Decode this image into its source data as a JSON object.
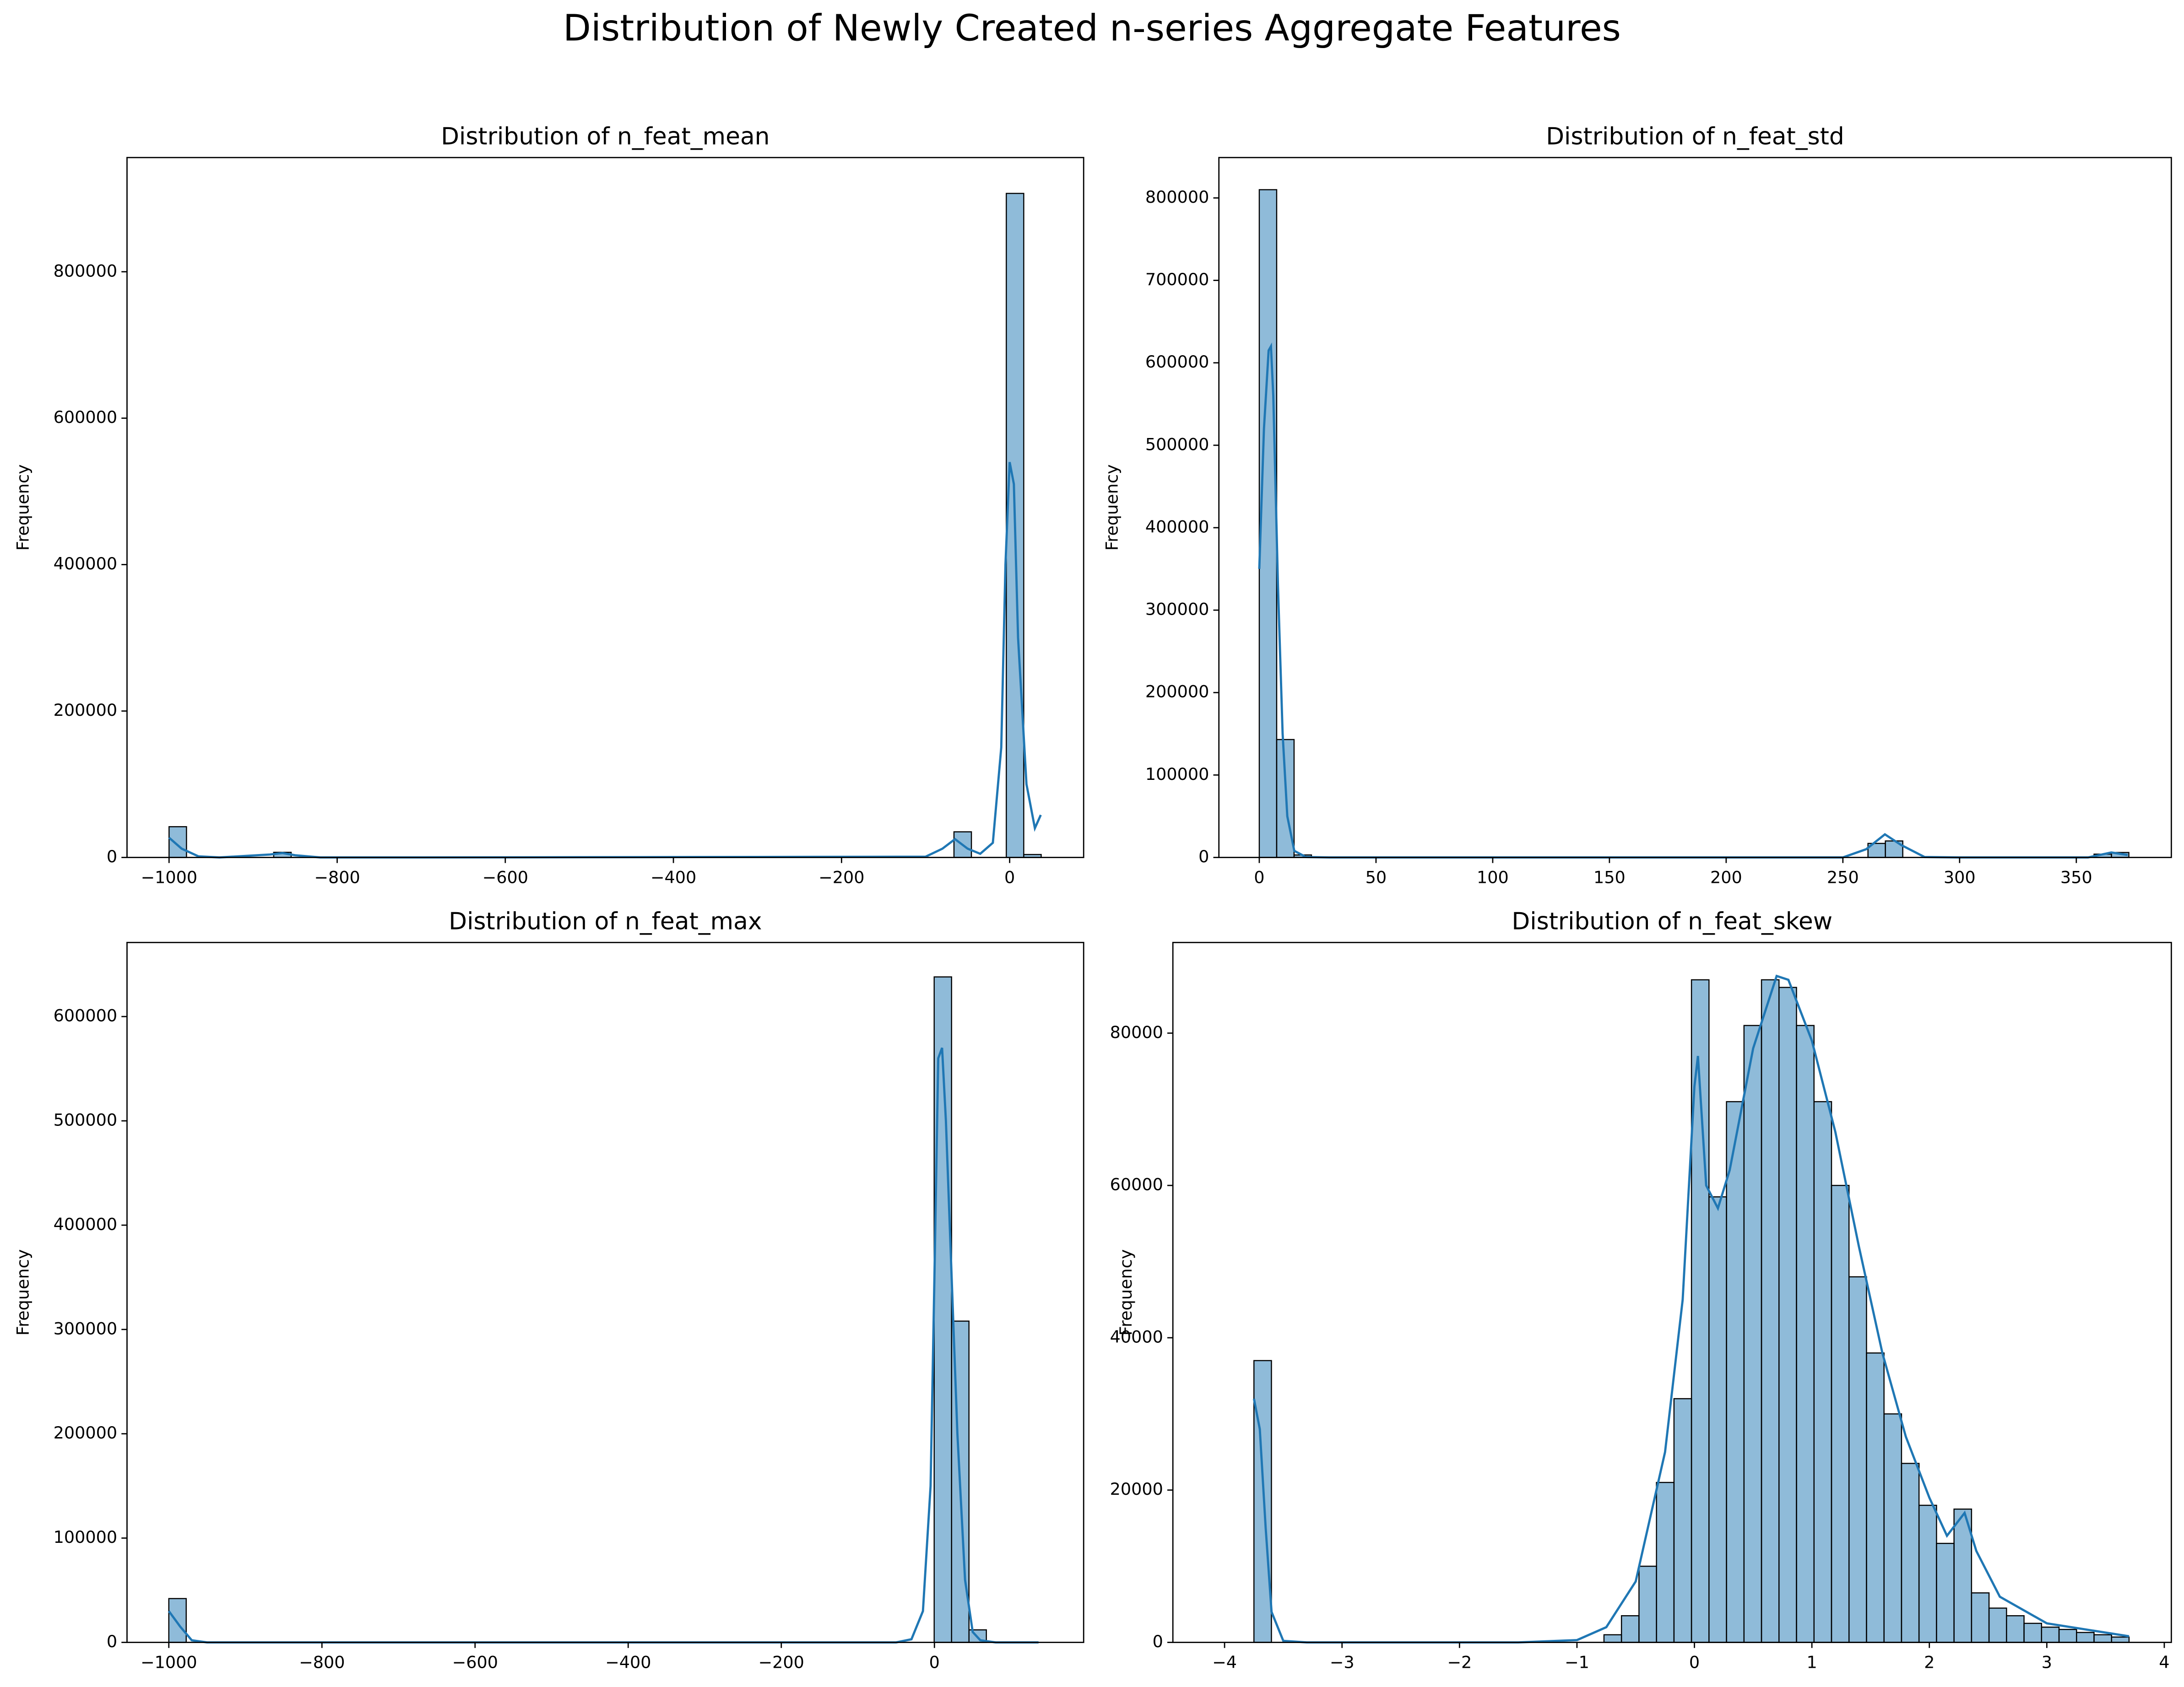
{
  "title": "Distribution of Newly Created n-series Aggregate Features",
  "chart_data": [
    {
      "type": "histogram",
      "title": "Distribution of n_feat_mean",
      "y_label": "Frequency",
      "color": "#1f77b4",
      "bins": [
        -1000,
        -979.25,
        -958.5,
        -937.75,
        -917,
        -896.25,
        -875.5,
        -854.75,
        -834,
        -813.25,
        -792.5,
        -771.75,
        -751,
        -730.25,
        -709.5,
        -688.75,
        -668,
        -647.25,
        -626.5,
        -605.75,
        -585,
        -564.25,
        -543.5,
        -522.75,
        -502,
        -481.25,
        -460.5,
        -439.75,
        -419,
        -398.25,
        -377.5,
        -356.75,
        -336,
        -315.25,
        -294.5,
        -273.75,
        -253,
        -232.25,
        -211.5,
        -190.75,
        -170,
        -149.25,
        -128.5,
        -107.75,
        -87,
        -66.25,
        -45.5,
        -24.75,
        -4,
        16.75,
        37.5
      ],
      "counts": [
        42000,
        0,
        0,
        0,
        0,
        0,
        7000,
        0,
        0,
        0,
        0,
        0,
        0,
        0,
        0,
        0,
        0,
        0,
        0,
        0,
        0,
        0,
        0,
        0,
        0,
        0,
        0,
        0,
        0,
        0,
        0,
        0,
        0,
        0,
        0,
        0,
        0,
        0,
        0,
        0,
        0,
        0,
        0,
        0,
        0,
        35000,
        0,
        0,
        907000,
        4000
      ],
      "kde": {
        "x": [
          -1000,
          -985,
          -965,
          -940,
          -880,
          -865,
          -850,
          -820,
          -700,
          -100,
          -80,
          -65,
          -50,
          -35,
          -20,
          -10,
          -5,
          0,
          5,
          10,
          20,
          30,
          37
        ],
        "y": [
          27000,
          12000,
          1500,
          0,
          4000,
          6000,
          3000,
          0,
          0,
          1000,
          12000,
          25000,
          12000,
          5000,
          20000,
          150000,
          400000,
          540000,
          510000,
          300000,
          100000,
          40000,
          58000
        ]
      },
      "xlim": [
        -1050,
        88
      ],
      "ylim": [
        0,
        956000
      ],
      "xticks": [
        {
          "value": -1000,
          "label": "−1000"
        },
        {
          "value": -800,
          "label": "−800"
        },
        {
          "value": -600,
          "label": "−600"
        },
        {
          "value": -400,
          "label": "−400"
        },
        {
          "value": -200,
          "label": "−200"
        },
        0
      ],
      "yticks": [
        0,
        200000,
        400000,
        600000,
        800000
      ]
    },
    {
      "type": "histogram",
      "title": "Distribution of n_feat_std",
      "y_label": "Frequency",
      "color": "#1f77b4",
      "bins": [
        0,
        7.45,
        14.9,
        22.35,
        29.8,
        37.25,
        44.7,
        52.15,
        59.6,
        67.05,
        74.5,
        81.95,
        89.4,
        96.85,
        104.3,
        111.75,
        119.2,
        126.65,
        134.1,
        141.55,
        149,
        156.45,
        163.9,
        171.35,
        178.8,
        186.25,
        193.7,
        201.15,
        208.6,
        216.05,
        223.5,
        230.95,
        238.4,
        245.85,
        253.3,
        260.75,
        268.2,
        275.65,
        283.1,
        290.55,
        298,
        305.45,
        312.9,
        320.35,
        327.8,
        335.25,
        342.7,
        350.15,
        357.6,
        365.05,
        372.5
      ],
      "counts": [
        810000,
        143000,
        3000,
        0,
        0,
        0,
        0,
        0,
        0,
        0,
        0,
        0,
        0,
        0,
        0,
        0,
        0,
        0,
        0,
        0,
        0,
        0,
        0,
        0,
        0,
        0,
        0,
        0,
        0,
        0,
        0,
        0,
        0,
        0,
        0,
        17000,
        20000,
        0,
        0,
        0,
        0,
        0,
        0,
        0,
        0,
        0,
        0,
        0,
        4000,
        6000
      ],
      "kde": {
        "x": [
          0,
          2,
          4,
          5,
          6,
          8,
          10,
          12,
          15,
          20,
          30,
          100,
          250,
          260,
          268,
          275,
          285,
          300,
          355,
          365,
          372
        ],
        "y": [
          350000,
          520000,
          615000,
          620000,
          560000,
          330000,
          150000,
          50000,
          8000,
          500,
          0,
          0,
          0,
          10000,
          28000,
          15000,
          500,
          0,
          0,
          6000,
          3000
        ]
      },
      "xlim": [
        -17.3,
        390.7
      ],
      "ylim": [
        0,
        849000
      ],
      "xticks": [
        0,
        50,
        100,
        150,
        200,
        250,
        300,
        350
      ],
      "yticks": [
        0,
        100000,
        200000,
        300000,
        400000,
        500000,
        600000,
        700000,
        800000
      ]
    },
    {
      "type": "histogram",
      "title": "Distribution of n_feat_max",
      "y_label": "Frequency",
      "color": "#1f77b4",
      "bins": [
        -1000,
        -977.28,
        -954.56,
        -931.84,
        -909.12,
        -886.4,
        -863.68,
        -840.96,
        -818.24,
        -795.52,
        -772.8,
        -750.08,
        -727.36,
        -704.64,
        -681.92,
        -659.2,
        -636.48,
        -613.76,
        -591.04,
        -568.32,
        -545.6,
        -522.88,
        -500.16,
        -477.44,
        -454.72,
        -432,
        -409.28,
        -386.56,
        -363.84,
        -341.12,
        -318.4,
        -295.68,
        -272.96,
        -250.24,
        -227.52,
        -204.8,
        -182.08,
        -159.36,
        -136.64,
        -113.92,
        -91.2,
        -68.48,
        -45.76,
        -23.04,
        -0.32,
        22.4,
        45.12,
        67.84,
        90.56,
        113.28,
        136
      ],
      "counts": [
        42000,
        0,
        0,
        0,
        0,
        0,
        0,
        0,
        0,
        0,
        0,
        0,
        0,
        0,
        0,
        0,
        0,
        0,
        0,
        0,
        0,
        0,
        0,
        0,
        0,
        0,
        0,
        0,
        0,
        0,
        0,
        0,
        0,
        0,
        0,
        0,
        0,
        0,
        0,
        0,
        0,
        0,
        0,
        0,
        638000,
        308000,
        12000,
        0,
        0,
        0
      ],
      "kde": {
        "x": [
          -1000,
          -985,
          -970,
          -950,
          -500,
          -50,
          -30,
          -15,
          -5,
          0,
          5,
          10,
          15,
          20,
          25,
          30,
          40,
          50,
          60,
          80,
          136
        ],
        "y": [
          30000,
          15000,
          2000,
          0,
          0,
          0,
          3000,
          30000,
          150000,
          350000,
          560000,
          570000,
          500000,
          400000,
          300000,
          200000,
          60000,
          10000,
          2000,
          0,
          0
        ]
      },
      "xlim": [
        -1054.6,
        194.9
      ],
      "ylim": [
        0,
        671000
      ],
      "xticks": [
        {
          "value": -1000,
          "label": "−1000"
        },
        {
          "value": -800,
          "label": "−800"
        },
        {
          "value": -600,
          "label": "−600"
        },
        {
          "value": -400,
          "label": "−400"
        },
        {
          "value": -200,
          "label": "−200"
        },
        0
      ],
      "yticks": [
        0,
        100000,
        200000,
        300000,
        400000,
        500000,
        600000
      ]
    },
    {
      "type": "histogram",
      "title": "Distribution of n_feat_skew",
      "y_label": "Frequency",
      "color": "#1f77b4",
      "bins": [
        -3.75,
        -3.601,
        -3.452,
        -3.303,
        -3.154,
        -3.005,
        -2.856,
        -2.707,
        -2.558,
        -2.409,
        -2.26,
        -2.111,
        -1.962,
        -1.813,
        -1.664,
        -1.515,
        -1.366,
        -1.217,
        -1.068,
        -0.919,
        -0.77,
        -0.621,
        -0.472,
        -0.323,
        -0.174,
        -0.025,
        0.124,
        0.273,
        0.422,
        0.571,
        0.72,
        0.869,
        1.018,
        1.167,
        1.316,
        1.465,
        1.614,
        1.763,
        1.912,
        2.061,
        2.21,
        2.359,
        2.508,
        2.657,
        2.806,
        2.955,
        3.104,
        3.253,
        3.402,
        3.551,
        3.7
      ],
      "counts": [
        37000,
        0,
        0,
        0,
        0,
        0,
        0,
        0,
        0,
        0,
        0,
        0,
        0,
        0,
        0,
        0,
        0,
        0,
        0,
        0,
        1000,
        3500,
        10000,
        21000,
        32000,
        87000,
        58500,
        71000,
        81000,
        87000,
        86000,
        81000,
        71000,
        60000,
        48000,
        38000,
        30000,
        23500,
        18000,
        13000,
        17500,
        6500,
        4500,
        3500,
        2500,
        2000,
        1700,
        1300,
        1000,
        700
      ],
      "kde": {
        "x": [
          -3.75,
          -3.7,
          -3.65,
          -3.6,
          -3.5,
          -3.3,
          -1.5,
          -1,
          -0.75,
          -0.5,
          -0.25,
          -0.1,
          0,
          0.03,
          0.1,
          0.2,
          0.3,
          0.5,
          0.7,
          0.8,
          1,
          1.2,
          1.4,
          1.6,
          1.8,
          2,
          2.15,
          2.3,
          2.4,
          2.6,
          3,
          3.7
        ],
        "y": [
          32000,
          28000,
          15000,
          4000,
          200,
          0,
          0,
          300,
          2000,
          8000,
          25000,
          45000,
          73000,
          77000,
          60000,
          57000,
          62000,
          78000,
          87500,
          87000,
          79000,
          67000,
          52000,
          38000,
          27000,
          19000,
          14000,
          17000,
          12000,
          6000,
          2500,
          800
        ]
      },
      "xlim": [
        -4.44,
        4.06
      ],
      "ylim": [
        0,
        91900
      ],
      "xticks": [
        {
          "value": -4,
          "label": "−4"
        },
        {
          "value": -3,
          "label": "−3"
        },
        {
          "value": -2,
          "label": "−2"
        },
        {
          "value": -1,
          "label": "−1"
        },
        0,
        1,
        2,
        3,
        4
      ],
      "yticks": [
        0,
        20000,
        40000,
        60000,
        80000
      ]
    }
  ]
}
